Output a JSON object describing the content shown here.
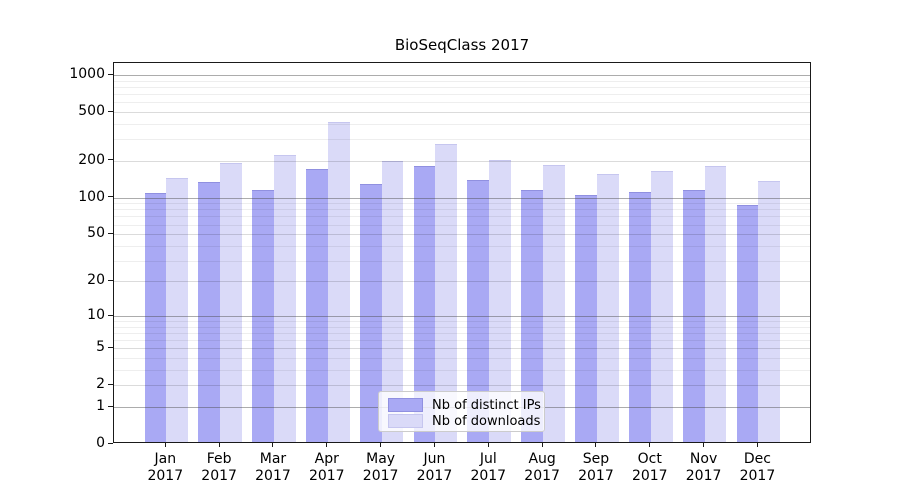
{
  "title": "BioSeqClass 2017",
  "chart_data": {
    "type": "bar",
    "title": "BioSeqClass 2017",
    "categories": [
      "Jan 2017",
      "Feb 2017",
      "Mar 2017",
      "Apr 2017",
      "May 2017",
      "Jun 2017",
      "Jul 2017",
      "Aug 2017",
      "Sep 2017",
      "Oct 2017",
      "Nov 2017",
      "Dec 2017"
    ],
    "x_tick_month": [
      "Jan",
      "Feb",
      "Mar",
      "Apr",
      "May",
      "Jun",
      "Jul",
      "Aug",
      "Sep",
      "Oct",
      "Nov",
      "Dec"
    ],
    "x_tick_year": "2017",
    "series": [
      {
        "name": "Nb of distinct IPs",
        "color": "#a9a9f4",
        "edge_color": "#9090e0",
        "values": [
          103,
          127,
          110,
          163,
          123,
          171,
          133,
          110,
          100,
          106,
          109,
          82
        ]
      },
      {
        "name": "Nb of downloads",
        "color": "#dadaf8",
        "edge_color": "#c6c6ef",
        "values": [
          137,
          182,
          212,
          390,
          190,
          260,
          194,
          176,
          148,
          155,
          172,
          129
        ]
      }
    ],
    "yscale": "log10(1+v)",
    "ylim": [
      0,
      1258
    ],
    "y_major_ticks": [
      0,
      1,
      2,
      5,
      10,
      20,
      50,
      100,
      200,
      500,
      1000
    ],
    "y_decade_gridlines": [
      1,
      10,
      100,
      1000
    ],
    "y_minor_gridlines": [
      3,
      4,
      6,
      7,
      8,
      9,
      30,
      40,
      60,
      70,
      80,
      90,
      300,
      400,
      600,
      700,
      800,
      900
    ],
    "grid": "on",
    "legend_position": "lower-center"
  },
  "legend": {
    "items": [
      {
        "label": "Nb of distinct IPs",
        "swatch_color": "#a9a9f4"
      },
      {
        "label": "Nb of downloads",
        "swatch_color": "#dadaf8"
      }
    ]
  },
  "colors": {
    "background": "#ffffff",
    "spine": "#1a1a1a",
    "grid_decade": "rgba(70,70,70,0.45)",
    "grid_major": "rgba(0,0,0,0.14)",
    "grid_minor": "rgba(0,0,0,0.065)",
    "text": "#000000"
  }
}
